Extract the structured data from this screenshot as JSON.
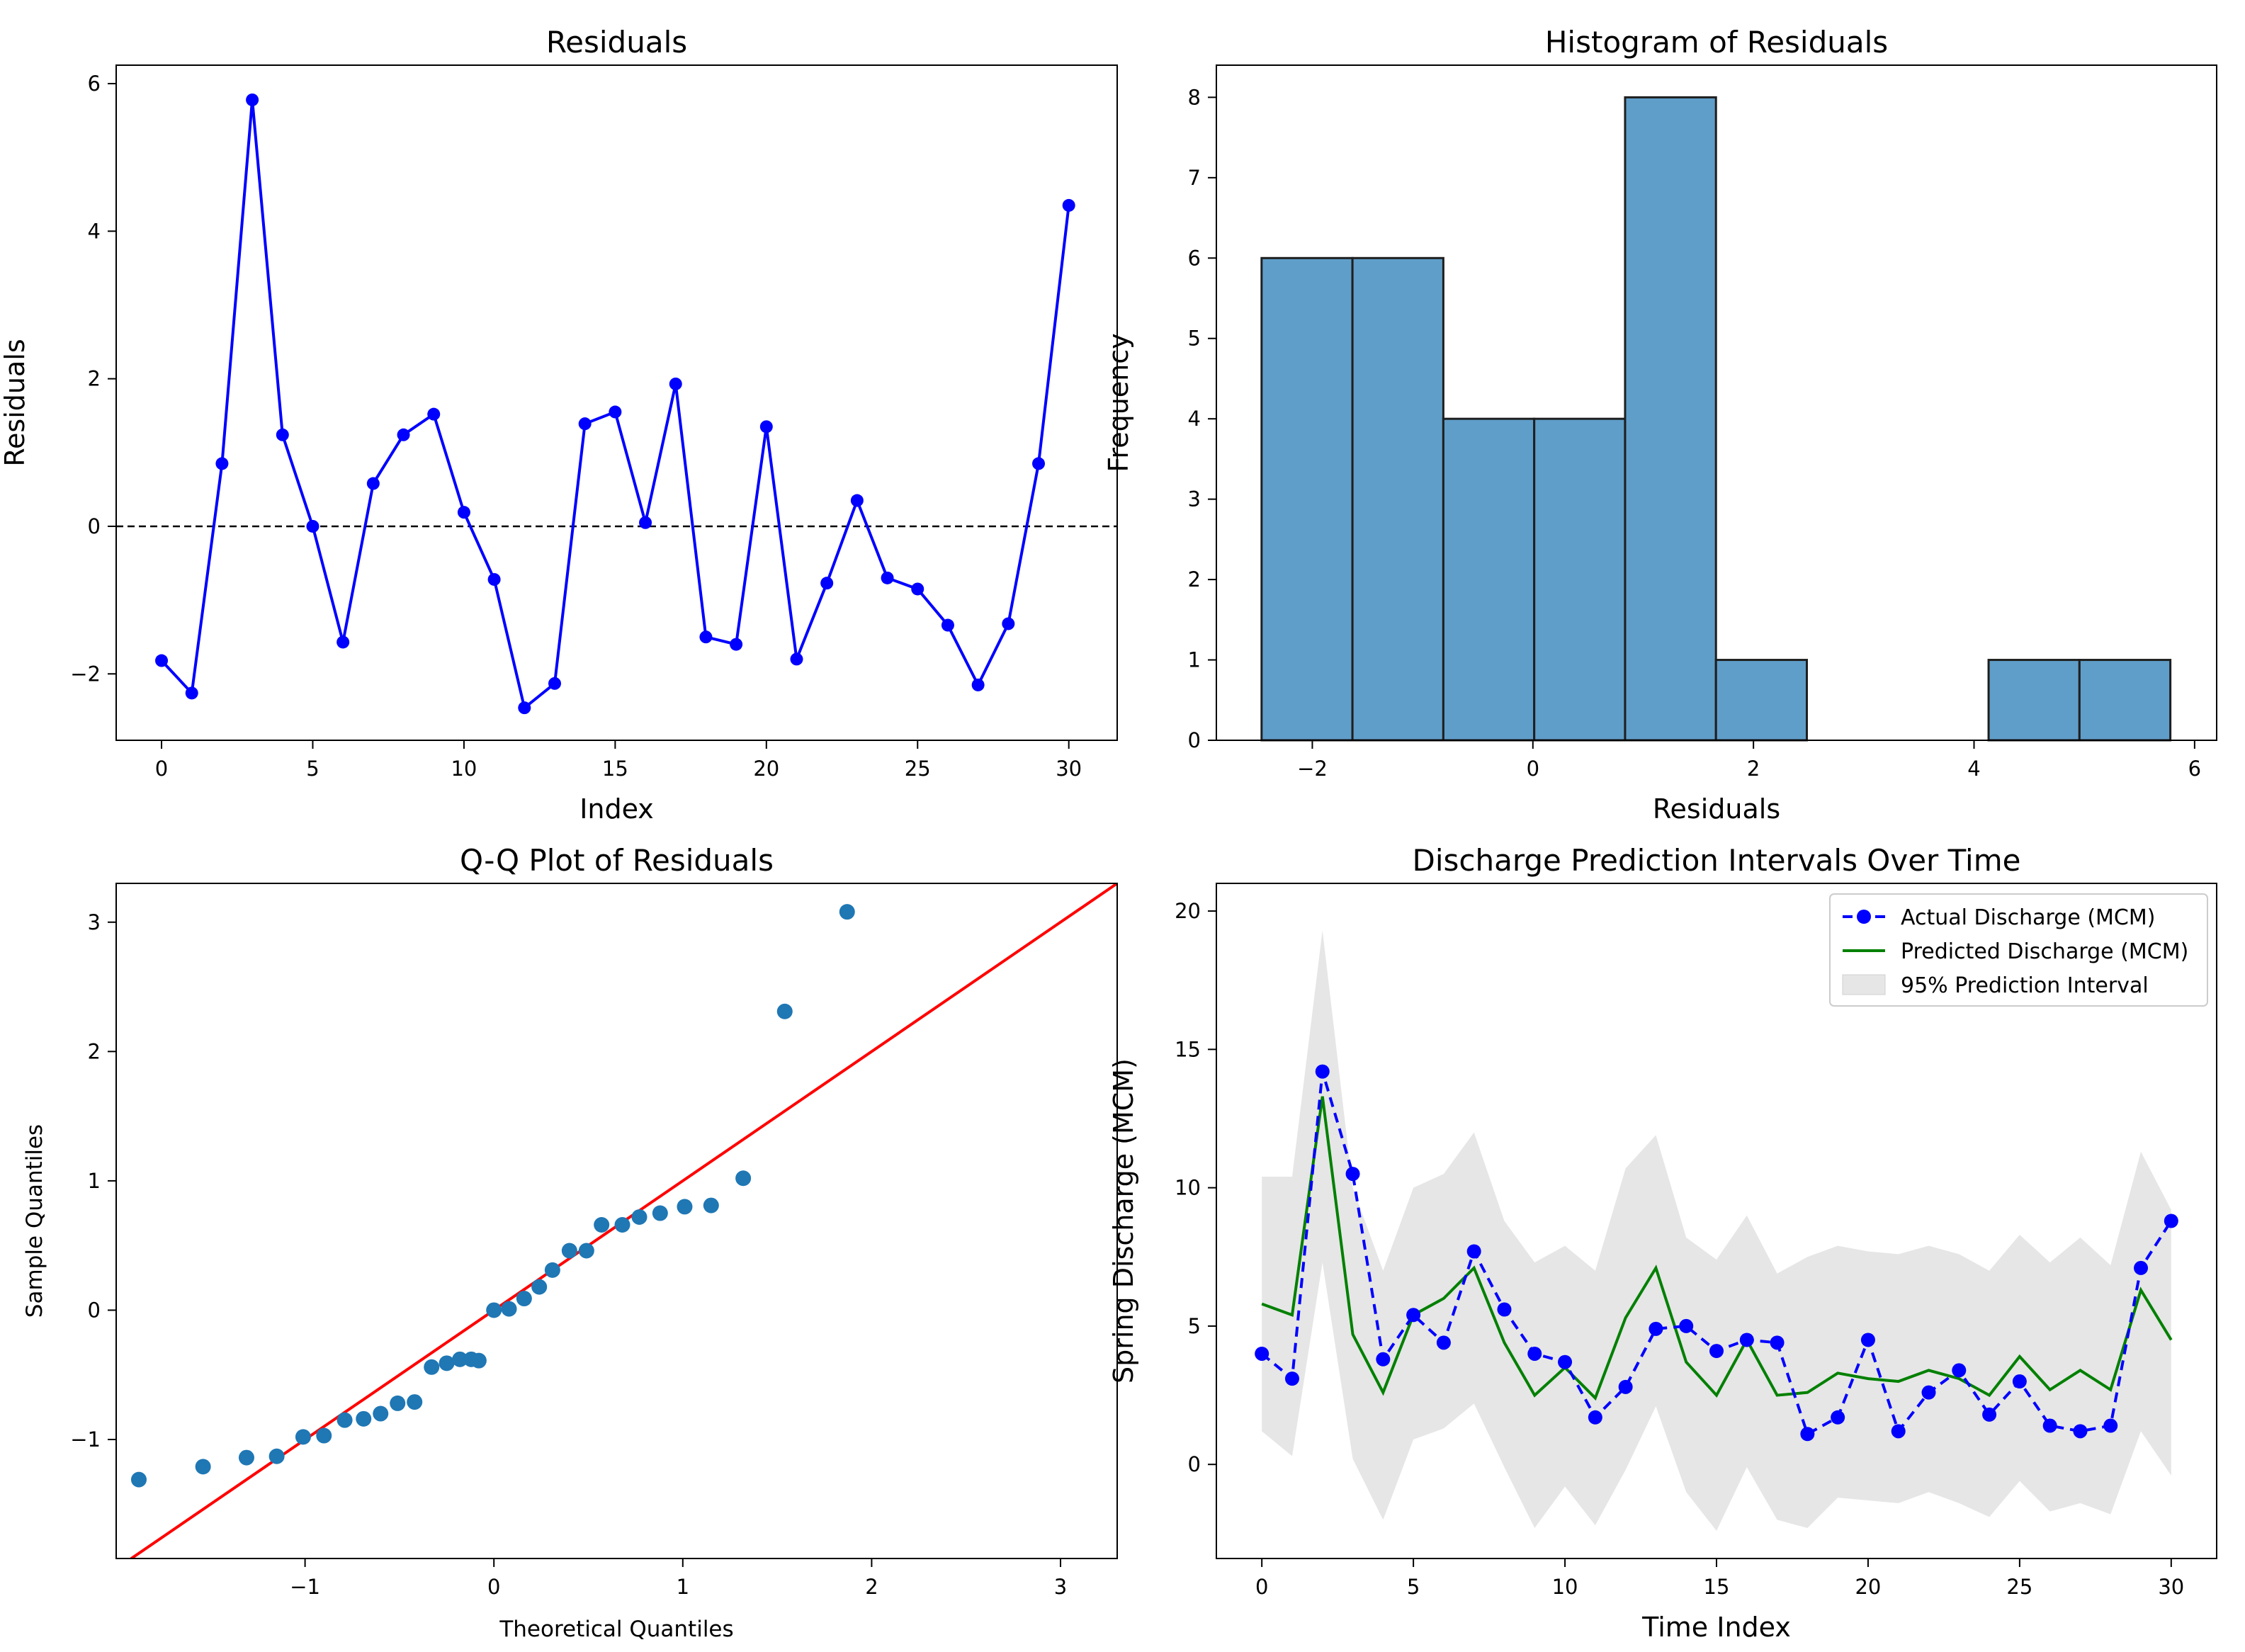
{
  "figure": {
    "panels": 4
  },
  "chart_data": [
    {
      "id": "residuals",
      "type": "line",
      "title": "Residuals",
      "xlabel": "Index",
      "ylabel": "Residuals",
      "xlim": [
        -1.5,
        31.6
      ],
      "ylim": [
        -2.9,
        6.25
      ],
      "xticks": [
        0,
        5,
        10,
        15,
        20,
        25,
        30
      ],
      "yticks": [
        -2,
        0,
        2,
        4,
        6
      ],
      "x": [
        0,
        1,
        2,
        3,
        4,
        5,
        6,
        7,
        8,
        9,
        10,
        11,
        12,
        13,
        14,
        15,
        16,
        17,
        18,
        19,
        20,
        21,
        22,
        23,
        24,
        25,
        26,
        27,
        28,
        29,
        30
      ],
      "values": [
        -1.82,
        -2.26,
        0.85,
        5.78,
        1.24,
        0.0,
        -1.57,
        0.58,
        1.24,
        1.52,
        0.19,
        -0.72,
        -2.46,
        -2.13,
        1.39,
        1.55,
        0.05,
        1.93,
        -1.5,
        -1.6,
        1.35,
        -1.8,
        -0.77,
        0.35,
        -0.7,
        -0.85,
        -1.34,
        -2.15,
        -1.32,
        0.85,
        4.35
      ],
      "reference_line": 0,
      "color": "#0000ff",
      "ref_color": "#000000"
    },
    {
      "id": "histogram",
      "type": "bar",
      "title": "Histogram of Residuals",
      "xlabel": "Residuals",
      "ylabel": "Frequency",
      "xlim": [
        -2.87,
        6.2
      ],
      "ylim": [
        0,
        8.4
      ],
      "xticks": [
        -2,
        0,
        2,
        4,
        6
      ],
      "yticks": [
        0,
        1,
        2,
        3,
        4,
        5,
        6,
        7,
        8
      ],
      "bin_edges": [
        -2.46,
        -1.636,
        -0.812,
        0.012,
        0.836,
        1.66,
        2.484,
        3.308,
        4.132,
        4.956,
        5.78
      ],
      "counts": [
        6,
        6,
        4,
        4,
        8,
        1,
        0,
        0,
        1,
        1
      ],
      "color": "#5f9ec9",
      "edge_color": "#1f1f1f"
    },
    {
      "id": "qqplot",
      "type": "scatter",
      "title": "Q-Q Plot of Residuals",
      "xlabel": "Theoretical Quantiles",
      "ylabel": "Sample Quantiles",
      "xlim": [
        -2.0,
        3.3
      ],
      "ylim": [
        -1.92,
        3.3
      ],
      "xticks": [
        -1,
        0,
        1,
        2,
        3
      ],
      "yticks": [
        -1,
        0,
        1,
        2,
        3
      ],
      "x": [
        -1.88,
        -1.54,
        -1.31,
        -1.15,
        -1.01,
        -0.9,
        -0.79,
        -0.69,
        -0.6,
        -0.51,
        -0.42,
        -0.33,
        -0.25,
        -0.18,
        -0.12,
        -0.08,
        0.0,
        0.08,
        0.16,
        0.24,
        0.31,
        0.4,
        0.49,
        0.57,
        0.68,
        0.77,
        0.88,
        1.01,
        1.15,
        1.32,
        1.54,
        1.87
      ],
      "values": [
        -1.31,
        -1.21,
        -1.14,
        -1.13,
        -0.98,
        -0.97,
        -0.85,
        -0.84,
        -0.8,
        -0.72,
        -0.71,
        -0.44,
        -0.41,
        -0.38,
        -0.38,
        -0.39,
        0.0,
        0.01,
        0.09,
        0.18,
        0.31,
        0.46,
        0.46,
        0.66,
        0.66,
        0.72,
        0.75,
        0.8,
        0.81,
        1.02,
        2.31,
        3.08
      ],
      "reference_line": {
        "slope": 1,
        "intercept": 0
      },
      "color": "#1f77b4",
      "line_color": "#ff0000"
    },
    {
      "id": "discharge",
      "type": "line",
      "title": "Discharge Prediction Intervals Over Time",
      "xlabel": "Time Index",
      "ylabel": "Spring Discharge (MCM)",
      "xlim": [
        -1.5,
        31.5
      ],
      "ylim": [
        -3.4,
        21.0
      ],
      "xticks": [
        0,
        5,
        10,
        15,
        20,
        25,
        30
      ],
      "yticks": [
        0,
        5,
        10,
        15,
        20
      ],
      "x": [
        0,
        1,
        2,
        3,
        4,
        5,
        6,
        7,
        8,
        9,
        10,
        11,
        12,
        13,
        14,
        15,
        16,
        17,
        18,
        19,
        20,
        21,
        22,
        23,
        24,
        25,
        26,
        27,
        28,
        29,
        30
      ],
      "series": [
        {
          "name": "Actual Discharge (MCM)",
          "color": "#0000ff",
          "values": [
            4.0,
            3.1,
            14.2,
            10.5,
            3.8,
            5.4,
            4.4,
            7.7,
            5.6,
            4.0,
            3.7,
            1.7,
            2.8,
            4.9,
            5.0,
            4.1,
            4.5,
            4.4,
            1.1,
            1.7,
            4.5,
            1.2,
            2.6,
            3.4,
            1.8,
            3.0,
            1.4,
            1.2,
            1.4,
            7.1,
            8.8
          ]
        },
        {
          "name": "Predicted Discharge (MCM)",
          "color": "#008000",
          "values": [
            5.8,
            5.4,
            13.3,
            4.7,
            2.6,
            5.4,
            6.0,
            7.1,
            4.4,
            2.5,
            3.5,
            2.4,
            5.3,
            7.1,
            3.7,
            2.5,
            4.5,
            2.5,
            2.6,
            3.3,
            3.1,
            3.0,
            3.4,
            3.1,
            2.5,
            3.9,
            2.7,
            3.4,
            2.7,
            6.3,
            4.5
          ]
        }
      ],
      "interval": {
        "name": "95% Prediction Interval",
        "color": "#e6e6e6",
        "upper": [
          10.4,
          10.4,
          19.3,
          10.0,
          7.0,
          10.0,
          10.5,
          12.0,
          8.8,
          7.3,
          7.9,
          7.0,
          10.7,
          11.9,
          8.2,
          7.4,
          9.0,
          6.9,
          7.5,
          7.9,
          7.7,
          7.6,
          7.9,
          7.6,
          7.0,
          8.3,
          7.3,
          8.2,
          7.2,
          11.3,
          9.2
        ],
        "lower": [
          1.2,
          0.3,
          7.3,
          0.2,
          -2.0,
          0.9,
          1.3,
          2.2,
          -0.1,
          -2.3,
          -0.8,
          -2.2,
          -0.2,
          2.1,
          -1.0,
          -2.4,
          -0.1,
          -2.0,
          -2.3,
          -1.2,
          -1.3,
          -1.4,
          -1.0,
          -1.4,
          -1.9,
          -0.6,
          -1.7,
          -1.4,
          -1.8,
          1.2,
          -0.4
        ]
      },
      "legend_position": "top-right"
    }
  ]
}
